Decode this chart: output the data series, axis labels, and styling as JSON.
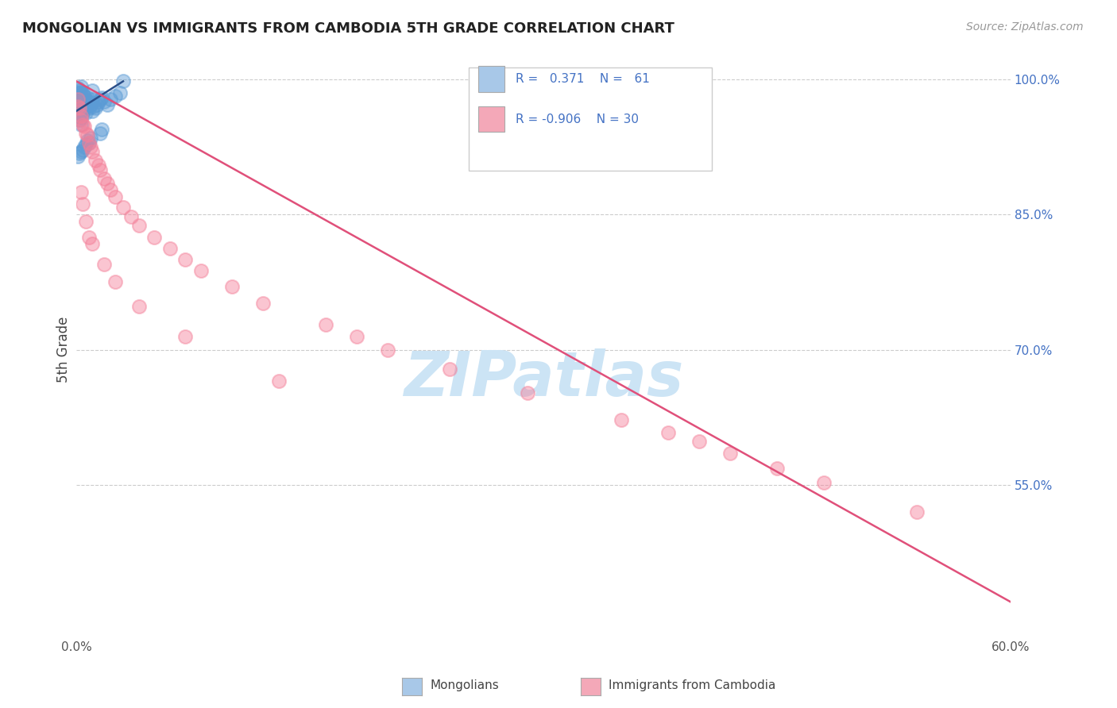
{
  "title": "MONGOLIAN VS IMMIGRANTS FROM CAMBODIA 5TH GRADE CORRELATION CHART",
  "source": "Source: ZipAtlas.com",
  "ylabel": "5th Grade",
  "xlim": [
    0.0,
    0.6
  ],
  "ylim": [
    0.38,
    1.02
  ],
  "xticks": [
    0.0,
    0.1,
    0.2,
    0.3,
    0.4,
    0.5,
    0.6
  ],
  "xticklabels": [
    "0.0%",
    "",
    "",
    "",
    "",
    "",
    "60.0%"
  ],
  "yticks_right": [
    1.0,
    0.85,
    0.7,
    0.55
  ],
  "ytick_right_labels": [
    "100.0%",
    "85.0%",
    "70.0%",
    "55.0%"
  ],
  "legend_color1": "#a8c8e8",
  "legend_color2": "#f4a8b8",
  "dot_color_blue": "#5b9bd5",
  "dot_color_pink": "#f48099",
  "line_color_blue": "#2a4f8a",
  "line_color_pink": "#e0507a",
  "watermark": "ZIPatlas",
  "watermark_color": "#cce4f5",
  "background_color": "#ffffff",
  "grid_color": "#cccccc",
  "title_color": "#222222",
  "axis_label_color": "#444444",
  "blue_dots_x": [
    0.001,
    0.001,
    0.001,
    0.001,
    0.001,
    0.001,
    0.001,
    0.002,
    0.002,
    0.002,
    0.002,
    0.002,
    0.002,
    0.003,
    0.003,
    0.003,
    0.003,
    0.003,
    0.003,
    0.003,
    0.004,
    0.004,
    0.004,
    0.004,
    0.005,
    0.005,
    0.005,
    0.006,
    0.006,
    0.006,
    0.007,
    0.007,
    0.008,
    0.008,
    0.009,
    0.01,
    0.01,
    0.011,
    0.012,
    0.013,
    0.014,
    0.015,
    0.016,
    0.018,
    0.02,
    0.022,
    0.025,
    0.028,
    0.015,
    0.016,
    0.008,
    0.009,
    0.005,
    0.006,
    0.003,
    0.002,
    0.001,
    0.004,
    0.007,
    0.01,
    0.03
  ],
  "blue_dots_y": [
    0.98,
    0.972,
    0.965,
    0.99,
    0.985,
    0.978,
    0.96,
    0.988,
    0.982,
    0.975,
    0.968,
    0.962,
    0.955,
    0.992,
    0.986,
    0.978,
    0.972,
    0.965,
    0.958,
    0.95,
    0.985,
    0.978,
    0.972,
    0.963,
    0.982,
    0.975,
    0.968,
    0.978,
    0.972,
    0.963,
    0.98,
    0.97,
    0.975,
    0.968,
    0.972,
    0.978,
    0.965,
    0.97,
    0.968,
    0.972,
    0.975,
    0.978,
    0.98,
    0.975,
    0.972,
    0.978,
    0.982,
    0.985,
    0.94,
    0.945,
    0.93,
    0.935,
    0.925,
    0.928,
    0.92,
    0.918,
    0.915,
    0.922,
    0.932,
    0.988,
    0.998
  ],
  "pink_dots_x": [
    0.001,
    0.001,
    0.002,
    0.003,
    0.003,
    0.004,
    0.005,
    0.006,
    0.007,
    0.008,
    0.009,
    0.01,
    0.012,
    0.014,
    0.015,
    0.018,
    0.02,
    0.022,
    0.025,
    0.03,
    0.035,
    0.04,
    0.05,
    0.06,
    0.07,
    0.08,
    0.1,
    0.12,
    0.16,
    0.18,
    0.2,
    0.24,
    0.29,
    0.35,
    0.38,
    0.4,
    0.42,
    0.45,
    0.48,
    0.54,
    0.003,
    0.004,
    0.006,
    0.008,
    0.01,
    0.018,
    0.025,
    0.04,
    0.07,
    0.13
  ],
  "pink_dots_y": [
    0.978,
    0.97,
    0.968,
    0.96,
    0.955,
    0.95,
    0.948,
    0.94,
    0.938,
    0.93,
    0.925,
    0.92,
    0.91,
    0.905,
    0.9,
    0.89,
    0.885,
    0.878,
    0.87,
    0.858,
    0.848,
    0.838,
    0.825,
    0.812,
    0.8,
    0.788,
    0.77,
    0.752,
    0.728,
    0.715,
    0.7,
    0.678,
    0.652,
    0.622,
    0.608,
    0.598,
    0.585,
    0.568,
    0.552,
    0.52,
    0.875,
    0.862,
    0.842,
    0.825,
    0.818,
    0.795,
    0.775,
    0.748,
    0.715,
    0.665
  ],
  "blue_line_x": [
    0.0,
    0.03
  ],
  "blue_line_y": [
    0.965,
    0.998
  ],
  "pink_line_x": [
    0.0,
    0.6
  ],
  "pink_line_y": [
    0.998,
    0.42
  ]
}
